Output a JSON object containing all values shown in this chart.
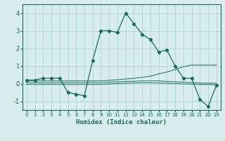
{
  "title": "",
  "xlabel": "Humidex (Indice chaleur)",
  "bg_color": "#d8eeee",
  "grid_color": "#aacccc",
  "line_color": "#1a6b5a",
  "xlim": [
    -0.5,
    23.5
  ],
  "ylim": [
    -1.5,
    4.5
  ],
  "xticks": [
    0,
    1,
    2,
    3,
    4,
    5,
    6,
    7,
    8,
    9,
    10,
    11,
    12,
    13,
    14,
    15,
    16,
    17,
    18,
    19,
    20,
    21,
    22,
    23
  ],
  "yticks": [
    -1,
    0,
    1,
    2,
    3,
    4
  ],
  "series_main": [
    0.2,
    0.2,
    0.3,
    0.3,
    0.3,
    -0.5,
    -0.6,
    -0.7,
    1.3,
    3.0,
    3.0,
    2.9,
    4.0,
    3.4,
    2.8,
    2.5,
    1.8,
    1.9,
    1.0,
    0.3,
    0.3,
    -0.9,
    -1.3,
    -0.1
  ],
  "series_flat1": [
    0.15,
    0.15,
    0.15,
    0.15,
    0.15,
    0.15,
    0.15,
    0.15,
    0.15,
    0.15,
    0.18,
    0.22,
    0.26,
    0.3,
    0.35,
    0.42,
    0.55,
    0.65,
    0.8,
    0.95,
    1.05,
    1.05,
    1.05,
    1.05
  ],
  "series_flat2": [
    0.05,
    0.05,
    0.05,
    0.05,
    0.05,
    0.05,
    0.05,
    0.05,
    0.05,
    0.05,
    0.08,
    0.1,
    0.12,
    0.13,
    0.15,
    0.15,
    0.15,
    0.12,
    0.1,
    0.08,
    0.05,
    0.03,
    0.02,
    0.02
  ],
  "series_flat3": [
    -0.05,
    -0.05,
    -0.05,
    -0.05,
    -0.05,
    -0.05,
    -0.05,
    -0.05,
    -0.05,
    -0.05,
    -0.02,
    0.0,
    0.02,
    0.03,
    0.04,
    0.04,
    0.03,
    0.02,
    0.0,
    -0.02,
    -0.03,
    -0.05,
    -0.06,
    -0.06
  ]
}
